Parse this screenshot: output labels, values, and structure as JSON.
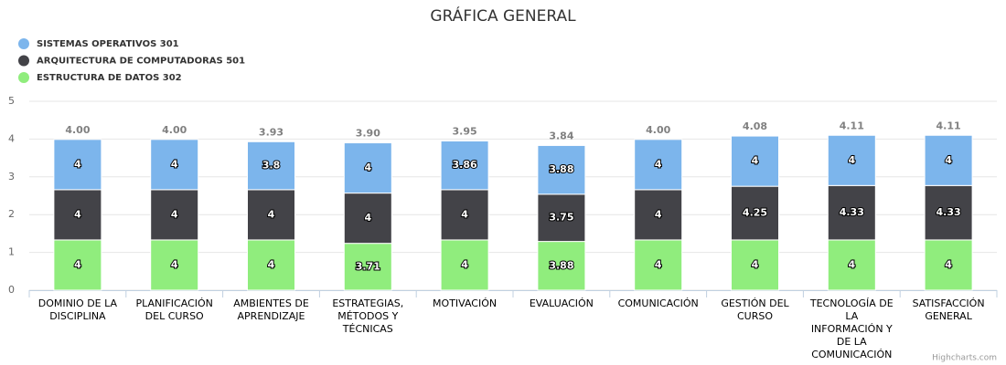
{
  "chart_data": {
    "type": "stacked_bar",
    "title": "GRÁFICA GENERAL",
    "categories": [
      "DOMINIO DE LA DISCIPLINA",
      "PLANIFICACIÓN DEL CURSO",
      "AMBIENTES DE APRENDIZAJE",
      "ESTRATEGIAS, MÉTODOS Y TÉCNICAS",
      "MOTIVACIÓN",
      "EVALUACIÓN",
      "COMUNICACIÓN",
      "GESTIÓN DEL CURSO",
      "TECNOLOGÍA DE LA INFORMACIÓN Y DE LA COMUNICACIÓN",
      "SATISFACCIÓN GENERAL"
    ],
    "series": [
      {
        "name": "SISTEMAS OPERATIVOS 301",
        "color": "#7cb5ec",
        "values": [
          1.33,
          1.33,
          1.27,
          1.33,
          1.29,
          1.29,
          1.33,
          1.33,
          1.33,
          1.33
        ],
        "value_labels": [
          "4",
          "4",
          "3.8",
          "4",
          "3.86",
          "3.88",
          "4",
          "4",
          "4",
          "4"
        ]
      },
      {
        "name": "ARQUITECTURA DE COMPUTADORAS 501",
        "color": "#434348",
        "values": [
          1.33,
          1.33,
          1.33,
          1.33,
          1.33,
          1.25,
          1.33,
          1.42,
          1.44,
          1.44
        ],
        "value_labels": [
          "4",
          "4",
          "4",
          "4",
          "4",
          "3.75",
          "4",
          "4.25",
          "4.33",
          "4.33"
        ]
      },
      {
        "name": "ESTRUCTURA DE DATOS 302",
        "color": "#90ed7d",
        "values": [
          1.33,
          1.33,
          1.33,
          1.24,
          1.33,
          1.29,
          1.33,
          1.33,
          1.33,
          1.33
        ],
        "value_labels": [
          "4",
          "4",
          "4",
          "3.71",
          "4",
          "3.88",
          "4",
          "4",
          "4",
          "4"
        ]
      }
    ],
    "stack_labels": [
      "4.00",
      "4.00",
      "3.93",
      "3.90",
      "3.95",
      "3.84",
      "4.00",
      "4.08",
      "4.11",
      "4.11"
    ],
    "ylim": [
      0,
      5
    ],
    "yticks": [
      0,
      1,
      2,
      3,
      4,
      5
    ],
    "grid": true,
    "legend": "top-left",
    "credits": "Highcharts.com"
  }
}
